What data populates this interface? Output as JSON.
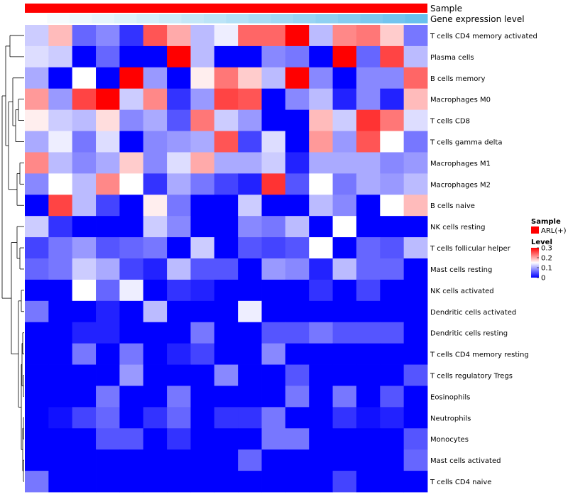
{
  "chart_data": {
    "type": "heatmap",
    "title": "",
    "annotation_tracks": [
      {
        "label": "Sample",
        "colors": [
          "#ff0000"
        ]
      },
      {
        "label": "Gene expression level",
        "colors": [
          "#ffffff",
          "#f6fbfe",
          "#eef8fd",
          "#e6f5fc",
          "#ddf2fb",
          "#d5eefa",
          "#cdebf9",
          "#c4e7f8",
          "#bce4f7",
          "#b3e0f6",
          "#aadcf5",
          "#a1d8f4",
          "#98d4f3",
          "#8fd0f2",
          "#86ccf1",
          "#7cc8f0",
          "#72c4ef",
          "#68c0ee"
        ]
      }
    ],
    "rows": [
      "T cells CD4 memory activated",
      "Plasma cells",
      "B cells memory",
      "Macrophages M0",
      "T cells CD8",
      "T cells gamma delta",
      "Macrophages M1",
      "Macrophages M2",
      "B cells naive",
      "NK cells resting",
      "T cells follicular helper",
      "Mast cells resting",
      "NK cells activated",
      "Dendritic cells activated",
      "Dendritic cells resting",
      "T cells CD4 memory resting",
      "T cells regulatory  Tregs",
      "Eosinophils",
      "Neutrophils",
      "Monocytes",
      "Mast cells activated",
      "T cells CD4 naive"
    ],
    "values": [
      [
        0.12,
        0.19,
        0.06,
        0.08,
        0.03,
        0.25,
        0.2,
        0.11,
        0.14,
        0.24,
        0.24,
        0.3,
        0.11,
        0.22,
        0.23,
        0.18,
        0.07
      ],
      [
        0.13,
        0.12,
        0.0,
        0.06,
        0.0,
        0.0,
        0.3,
        0.11,
        0.0,
        0.0,
        0.08,
        0.07,
        0.0,
        0.3,
        0.06,
        0.26,
        0.11
      ],
      [
        0.1,
        0.0,
        0.15,
        0.0,
        0.3,
        0.09,
        0.0,
        0.16,
        0.23,
        0.18,
        0.11,
        0.3,
        0.08,
        0.0,
        0.08,
        0.08,
        0.24
      ],
      [
        0.21,
        0.09,
        0.26,
        0.3,
        0.12,
        0.22,
        0.03,
        0.09,
        0.26,
        0.25,
        0.0,
        0.08,
        0.11,
        0.02,
        0.08,
        0.02,
        0.19
      ],
      [
        0.16,
        0.12,
        0.11,
        0.17,
        0.08,
        0.1,
        0.05,
        0.23,
        0.12,
        0.09,
        0.0,
        0.0,
        0.19,
        0.12,
        0.27,
        0.23,
        0.13
      ],
      [
        0.1,
        0.14,
        0.07,
        0.13,
        0.0,
        0.08,
        0.09,
        0.1,
        0.25,
        0.04,
        0.13,
        0.0,
        0.21,
        0.09,
        0.25,
        0.15,
        0.07
      ],
      [
        0.22,
        0.11,
        0.08,
        0.1,
        0.18,
        0.08,
        0.13,
        0.2,
        0.1,
        0.1,
        0.12,
        0.02,
        0.1,
        0.1,
        0.1,
        0.08,
        0.09
      ],
      [
        0.08,
        0.15,
        0.11,
        0.22,
        0.15,
        0.03,
        0.1,
        0.07,
        0.04,
        0.02,
        0.27,
        0.05,
        0.15,
        0.07,
        0.1,
        0.09,
        0.11
      ],
      [
        0.0,
        0.26,
        0.11,
        0.04,
        0.0,
        0.16,
        0.07,
        0.0,
        0.0,
        0.12,
        0.0,
        0.0,
        0.11,
        0.08,
        0.0,
        0.15,
        0.19
      ],
      [
        0.12,
        0.03,
        0.0,
        0.0,
        0.0,
        0.12,
        0.08,
        0.0,
        0.0,
        0.08,
        0.07,
        0.11,
        0.0,
        0.15,
        0.0,
        0.0,
        0.0
      ],
      [
        0.04,
        0.07,
        0.09,
        0.05,
        0.06,
        0.07,
        0.0,
        0.12,
        0.0,
        0.05,
        0.04,
        0.05,
        0.15,
        0.0,
        0.06,
        0.05,
        0.11
      ],
      [
        0.06,
        0.07,
        0.12,
        0.1,
        0.04,
        0.02,
        0.11,
        0.05,
        0.05,
        0.0,
        0.09,
        0.08,
        0.02,
        0.11,
        0.06,
        0.06,
        0.0
      ],
      [
        0.0,
        0.0,
        0.15,
        0.06,
        0.14,
        0.0,
        0.03,
        0.02,
        0.0,
        0.0,
        0.0,
        0.0,
        0.03,
        0.0,
        0.04,
        0.0,
        0.0
      ],
      [
        0.07,
        0.0,
        0.0,
        0.02,
        0.0,
        0.11,
        0.0,
        0.0,
        0.0,
        0.14,
        0.0,
        0.0,
        0.0,
        0.0,
        0.0,
        0.0,
        0.0
      ],
      [
        0.0,
        0.0,
        0.02,
        0.02,
        0.0,
        0.0,
        0.0,
        0.07,
        0.0,
        0.0,
        0.05,
        0.05,
        0.07,
        0.05,
        0.05,
        0.05,
        0.0
      ],
      [
        0.0,
        0.0,
        0.07,
        0.0,
        0.07,
        0.0,
        0.02,
        0.04,
        0.0,
        0.0,
        0.08,
        0.0,
        0.0,
        0.0,
        0.0,
        0.0,
        0.0
      ],
      [
        0.0,
        0.0,
        0.0,
        0.0,
        0.09,
        0.0,
        0.0,
        0.0,
        0.08,
        0.0,
        0.0,
        0.05,
        0.0,
        0.0,
        0.0,
        0.0,
        0.05
      ],
      [
        0.0,
        0.0,
        0.0,
        0.07,
        0.0,
        0.0,
        0.07,
        0.0,
        0.0,
        0.0,
        0.0,
        0.07,
        0.0,
        0.07,
        0.0,
        0.05,
        0.0
      ],
      [
        0.0,
        0.01,
        0.04,
        0.06,
        0.0,
        0.03,
        0.06,
        0.0,
        0.03,
        0.03,
        0.07,
        0.0,
        0.0,
        0.03,
        0.01,
        0.02,
        0.0
      ],
      [
        0.0,
        0.0,
        0.0,
        0.05,
        0.05,
        0.0,
        0.03,
        0.0,
        0.0,
        0.0,
        0.07,
        0.07,
        0.0,
        0.0,
        0.0,
        0.0,
        0.05
      ],
      [
        0.0,
        0.0,
        0.0,
        0.0,
        0.0,
        0.0,
        0.0,
        0.0,
        0.0,
        0.06,
        0.0,
        0.0,
        0.0,
        0.0,
        0.0,
        0.0,
        0.06
      ],
      [
        0.07,
        0.0,
        0.0,
        0.0,
        0.0,
        0.0,
        0.0,
        0.0,
        0.0,
        0.0,
        0.0,
        0.0,
        0.0,
        0.04,
        0.0,
        0.0,
        0.0
      ]
    ],
    "color_scale": {
      "min": 0,
      "mid": 0.15,
      "max": 0.3,
      "low": "#0000ff",
      "midColor": "#ffffff",
      "high": "#ff0000"
    },
    "legend": {
      "sample_title": "Sample",
      "sample_entry": "ARL(+)",
      "sample_color": "#ff0000",
      "level_title": "Level",
      "level_ticks": [
        0.3,
        0.2,
        0.1,
        0
      ],
      "level_tick_labels": [
        "0.3",
        "0.2",
        "0.1",
        "0"
      ]
    },
    "dendrogram": "row clustering tree (left side)"
  }
}
